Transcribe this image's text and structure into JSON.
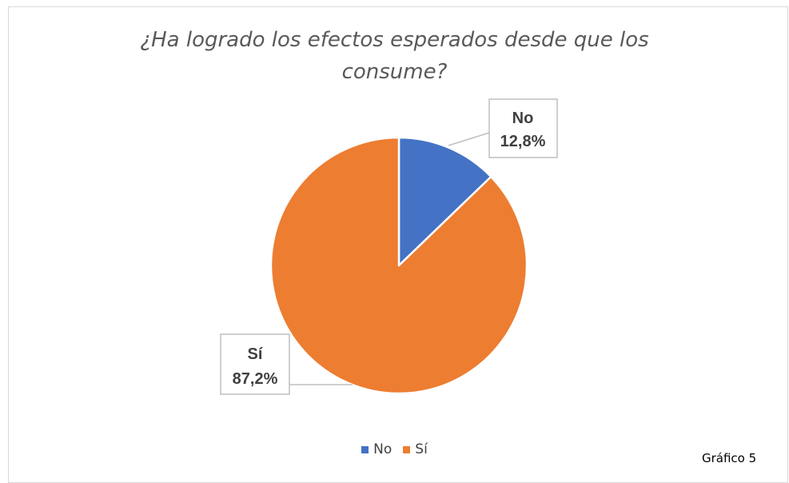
{
  "chart_data": {
    "type": "pie",
    "title_line1": "¿Ha logrado los efectos esperados desde que los",
    "title_line2": "consume?",
    "slices": [
      {
        "name": "No",
        "value": 12.8,
        "label": "12,8%",
        "color": "#4472c4"
      },
      {
        "name": "Sí",
        "value": 87.2,
        "label": "87,2%",
        "color": "#ed7d31"
      }
    ],
    "legend": [
      "No",
      "Sí"
    ],
    "legend_position": "bottom"
  },
  "caption": "Gráfico 5"
}
